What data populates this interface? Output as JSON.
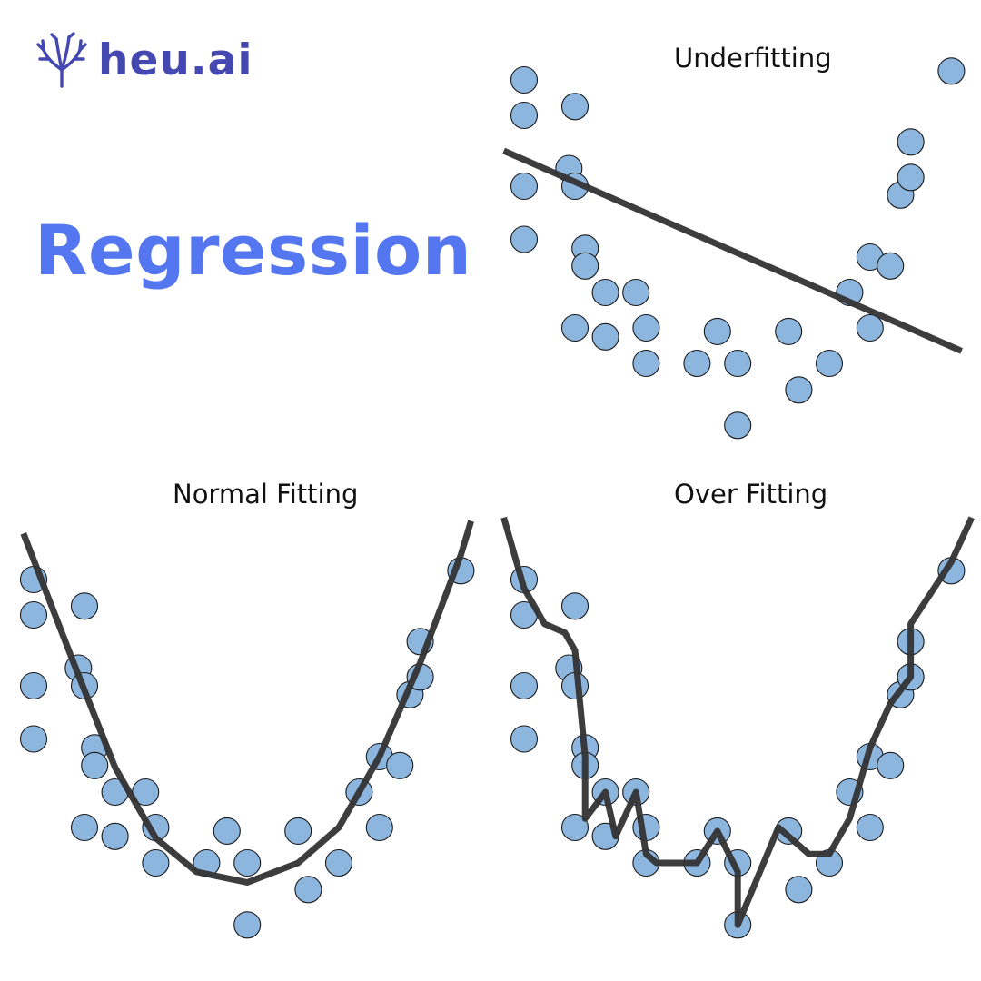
{
  "brand": {
    "name": "heu.ai",
    "icon": "coral-branch-icon",
    "color": "#4548b0"
  },
  "headline": {
    "text": "Regression",
    "color": "#5476f1"
  },
  "style": {
    "point_fill": "#8db6de",
    "point_stroke": "#1a1a1a",
    "line_color": "#333333"
  },
  "chart_data": [
    {
      "type": "scatter",
      "title": "Underfitting",
      "fit": "linear",
      "points": [
        [
          0,
          22
        ],
        [
          0,
          20
        ],
        [
          0,
          16
        ],
        [
          0,
          13
        ],
        [
          2.5,
          20.5
        ],
        [
          2.2,
          17
        ],
        [
          2.5,
          16
        ],
        [
          3,
          12.5
        ],
        [
          3,
          11.5
        ],
        [
          2.5,
          8
        ],
        [
          4,
          10
        ],
        [
          4,
          7.5
        ],
        [
          5.5,
          10
        ],
        [
          6,
          8
        ],
        [
          6,
          6
        ],
        [
          8.5,
          6
        ],
        [
          9.5,
          7.8
        ],
        [
          10.5,
          6
        ],
        [
          10.5,
          2.5
        ],
        [
          13,
          7.8
        ],
        [
          13.5,
          4.5
        ],
        [
          15,
          6
        ],
        [
          16,
          10
        ],
        [
          17,
          8
        ],
        [
          17,
          12
        ],
        [
          18,
          11.5
        ],
        [
          18.5,
          15.5
        ],
        [
          19,
          16.5
        ],
        [
          19,
          18.5
        ],
        [
          21,
          22.5
        ]
      ],
      "line": [
        [
          -1,
          18
        ],
        [
          21.5,
          6.7
        ]
      ]
    },
    {
      "type": "scatter",
      "title": "Normal Fitting",
      "fit": "quadratic",
      "points": [
        [
          0,
          22
        ],
        [
          0,
          20
        ],
        [
          0,
          16
        ],
        [
          0,
          13
        ],
        [
          2.5,
          20.5
        ],
        [
          2.2,
          17
        ],
        [
          2.5,
          16
        ],
        [
          3,
          12.5
        ],
        [
          3,
          11.5
        ],
        [
          2.5,
          8
        ],
        [
          4,
          10
        ],
        [
          4,
          7.5
        ],
        [
          5.5,
          10
        ],
        [
          6,
          8
        ],
        [
          6,
          6
        ],
        [
          8.5,
          6
        ],
        [
          9.5,
          7.8
        ],
        [
          10.5,
          6
        ],
        [
          10.5,
          2.5
        ],
        [
          13,
          7.8
        ],
        [
          13.5,
          4.5
        ],
        [
          15,
          6
        ],
        [
          16,
          10
        ],
        [
          17,
          8
        ],
        [
          17,
          12
        ],
        [
          18,
          11.5
        ],
        [
          18.5,
          15.5
        ],
        [
          19,
          16.5
        ],
        [
          19,
          18.5
        ],
        [
          21,
          22.5
        ]
      ],
      "line": [
        [
          -0.5,
          24.6
        ],
        [
          2,
          17.2
        ],
        [
          4,
          11.4
        ],
        [
          6,
          7.4
        ],
        [
          8,
          5.5
        ],
        [
          10.5,
          4.9
        ],
        [
          13,
          6
        ],
        [
          15,
          8
        ],
        [
          17,
          12
        ],
        [
          19,
          17.3
        ],
        [
          21,
          23.4
        ],
        [
          21.5,
          25.3
        ]
      ]
    },
    {
      "type": "scatter",
      "title": "Over Fitting",
      "fit": "interpolating",
      "points": [
        [
          0,
          22
        ],
        [
          0,
          20
        ],
        [
          0,
          16
        ],
        [
          0,
          13
        ],
        [
          2.5,
          20.5
        ],
        [
          2.2,
          17
        ],
        [
          2.5,
          16
        ],
        [
          3,
          12.5
        ],
        [
          3,
          11.5
        ],
        [
          2.5,
          8
        ],
        [
          4,
          10
        ],
        [
          4,
          7.5
        ],
        [
          5.5,
          10
        ],
        [
          6,
          8
        ],
        [
          6,
          6
        ],
        [
          8.5,
          6
        ],
        [
          9.5,
          7.8
        ],
        [
          10.5,
          6
        ],
        [
          10.5,
          2.5
        ],
        [
          13,
          7.8
        ],
        [
          13.5,
          4.5
        ],
        [
          15,
          6
        ],
        [
          16,
          10
        ],
        [
          17,
          8
        ],
        [
          17,
          12
        ],
        [
          18,
          11.5
        ],
        [
          18.5,
          15.5
        ],
        [
          19,
          16.5
        ],
        [
          19,
          18.5
        ],
        [
          21,
          22.5
        ]
      ],
      "line": [
        [
          -1,
          25.5
        ],
        [
          0,
          21.5
        ],
        [
          1,
          19.5
        ],
        [
          2,
          19
        ],
        [
          2.5,
          18
        ],
        [
          3,
          12
        ],
        [
          3,
          8.5
        ],
        [
          4,
          10
        ],
        [
          4.5,
          7.5
        ],
        [
          5.5,
          10
        ],
        [
          6,
          6.5
        ],
        [
          6.5,
          6
        ],
        [
          8.5,
          6
        ],
        [
          9.5,
          7.8
        ],
        [
          10.5,
          5.5
        ],
        [
          10.5,
          2.5
        ],
        [
          12.5,
          8
        ],
        [
          14,
          6.5
        ],
        [
          15,
          6.5
        ],
        [
          16,
          8.5
        ],
        [
          17,
          12.5
        ],
        [
          18,
          15
        ],
        [
          19,
          16.5
        ],
        [
          19,
          19.5
        ],
        [
          21,
          23
        ],
        [
          22,
          25.5
        ]
      ]
    }
  ]
}
